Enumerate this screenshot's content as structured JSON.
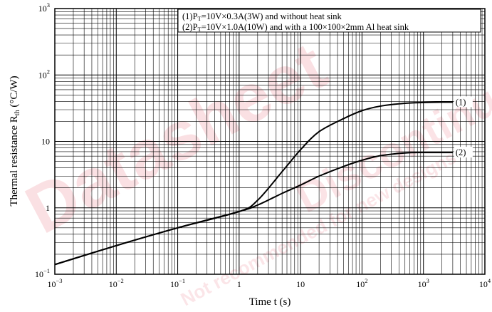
{
  "chart_data": {
    "type": "line",
    "title": "",
    "xlabel": "Time  t  (s)",
    "ylabel_main": "Thermal resistance  R",
    "ylabel_sub": "th",
    "ylabel_unit": "  (°C/W)",
    "xscale": "log",
    "yscale": "log",
    "xlim": [
      0.001,
      10000
    ],
    "ylim": [
      0.1,
      1000
    ],
    "grid": true,
    "x_ticks": [
      {
        "base": "10",
        "exp": "−3"
      },
      {
        "base": "10",
        "exp": "−2"
      },
      {
        "base": "10",
        "exp": "−1"
      },
      {
        "base": "1",
        "exp": ""
      },
      {
        "base": "10",
        "exp": ""
      },
      {
        "base": "10",
        "exp": "2"
      },
      {
        "base": "10",
        "exp": "3"
      },
      {
        "base": "10",
        "exp": "4"
      }
    ],
    "y_ticks": [
      {
        "base": "10",
        "exp": "−1"
      },
      {
        "base": "1",
        "exp": ""
      },
      {
        "base": "10",
        "exp": ""
      },
      {
        "base": "10",
        "exp": "2"
      },
      {
        "base": "10",
        "exp": "3"
      }
    ],
    "legend": {
      "placement": "top-right",
      "lines": [
        {
          "prefix": "(1)P",
          "sub": "T",
          "text": "=10V×0.3A(3W) and without heat sink"
        },
        {
          "prefix": "(2)P",
          "sub": "T",
          "text": "=10V×1.0A(10W) and with a 100×100×2mm Al heat sink"
        }
      ]
    },
    "series": [
      {
        "name": "(1)",
        "x": [
          0.001,
          0.01,
          0.1,
          1,
          2,
          5,
          10,
          20,
          50,
          100,
          200,
          500,
          1000,
          2000,
          3000
        ],
        "values": [
          0.14,
          0.27,
          0.5,
          0.88,
          1.3,
          3.5,
          7.5,
          14,
          22,
          29,
          34,
          37.5,
          38.5,
          39,
          39
        ]
      },
      {
        "name": "(2)",
        "x": [
          0.001,
          0.01,
          0.1,
          1,
          2,
          5,
          10,
          20,
          50,
          100,
          200,
          500,
          1000,
          2000,
          3000
        ],
        "values": [
          0.14,
          0.27,
          0.5,
          0.88,
          1.1,
          1.65,
          2.2,
          3,
          4.2,
          5.2,
          6.1,
          6.7,
          6.8,
          6.8,
          6.8
        ]
      }
    ]
  },
  "watermark": {
    "color": "#d8001a",
    "lines": [
      "Datasheet",
      "Not recommended for new designs",
      "Discontinued"
    ]
  }
}
